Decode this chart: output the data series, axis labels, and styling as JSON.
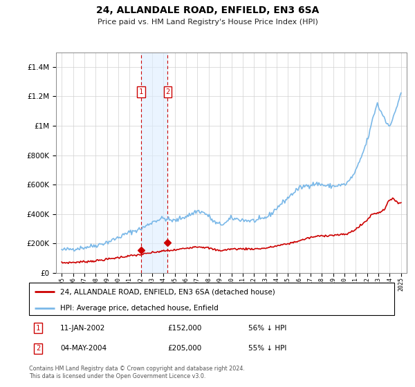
{
  "title": "24, ALLANDALE ROAD, ENFIELD, EN3 6SA",
  "subtitle": "Price paid vs. HM Land Registry's House Price Index (HPI)",
  "hpi_label": "HPI: Average price, detached house, Enfield",
  "price_label": "24, ALLANDALE ROAD, ENFIELD, EN3 6SA (detached house)",
  "footer": "Contains HM Land Registry data © Crown copyright and database right 2024.\nThis data is licensed under the Open Government Licence v3.0.",
  "transactions": [
    {
      "num": 1,
      "date": "11-JAN-2002",
      "price": "£152,000",
      "pct": "56% ↓ HPI",
      "x_year": 2002.03
    },
    {
      "num": 2,
      "date": "04-MAY-2004",
      "price": "£205,000",
      "pct": "55% ↓ HPI",
      "x_year": 2004.37
    }
  ],
  "transaction_prices": [
    152000,
    205000
  ],
  "transaction_years": [
    2002.03,
    2004.37
  ],
  "hpi_color": "#7ab8e8",
  "price_color": "#cc0000",
  "vline_color": "#cc0000",
  "shade_color": "#ddeeff",
  "ylim": [
    0,
    1500000
  ],
  "xlim_start": 1994.5,
  "xlim_end": 2025.5
}
